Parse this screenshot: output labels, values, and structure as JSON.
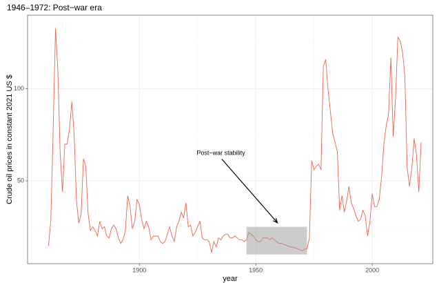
{
  "chart_data": {
    "type": "line",
    "title": "1946–1972: Post−war era",
    "x_label": "year",
    "y_label": "Crude oil prices in constant 2021 US $",
    "xlim": [
      1852,
      2026
    ],
    "ylim": [
      5,
      140
    ],
    "xticks": [
      1900,
      1950,
      2000
    ],
    "yticks": [
      50,
      100
    ],
    "xticks_minor": [
      1875,
      1925,
      1975,
      2025
    ],
    "yticks_minor": [
      25,
      75,
      125
    ],
    "grid": true,
    "color": "#f0614f",
    "x": [
      1861,
      1862,
      1863,
      1864,
      1865,
      1866,
      1867,
      1868,
      1869,
      1870,
      1871,
      1872,
      1873,
      1874,
      1875,
      1876,
      1877,
      1878,
      1879,
      1880,
      1881,
      1882,
      1883,
      1884,
      1885,
      1886,
      1887,
      1888,
      1889,
      1890,
      1891,
      1892,
      1893,
      1894,
      1895,
      1896,
      1897,
      1898,
      1899,
      1900,
      1901,
      1902,
      1903,
      1904,
      1905,
      1906,
      1907,
      1908,
      1909,
      1910,
      1911,
      1912,
      1913,
      1914,
      1915,
      1916,
      1917,
      1918,
      1919,
      1920,
      1921,
      1922,
      1923,
      1924,
      1925,
      1926,
      1927,
      1928,
      1929,
      1930,
      1931,
      1932,
      1933,
      1934,
      1935,
      1936,
      1937,
      1938,
      1939,
      1940,
      1941,
      1942,
      1943,
      1944,
      1945,
      1946,
      1947,
      1948,
      1949,
      1950,
      1951,
      1952,
      1953,
      1954,
      1955,
      1956,
      1957,
      1958,
      1959,
      1960,
      1961,
      1962,
      1963,
      1964,
      1965,
      1966,
      1967,
      1968,
      1969,
      1970,
      1971,
      1972,
      1973,
      1974,
      1975,
      1976,
      1977,
      1978,
      1979,
      1980,
      1981,
      1982,
      1983,
      1984,
      1985,
      1986,
      1987,
      1988,
      1989,
      1990,
      1991,
      1992,
      1993,
      1994,
      1995,
      1996,
      1997,
      1998,
      1999,
      2000,
      2001,
      2002,
      2003,
      2004,
      2005,
      2006,
      2007,
      2008,
      2009,
      2010,
      2011,
      2012,
      2013,
      2014,
      2015,
      2016,
      2017,
      2018,
      2019,
      2020,
      2021
    ],
    "values": [
      14.5,
      29,
      78,
      133,
      110,
      65,
      44,
      70,
      70,
      78,
      93,
      75,
      39,
      27,
      32,
      62,
      58,
      32,
      23,
      25,
      23,
      20,
      28,
      24,
      25,
      20,
      19,
      24,
      26,
      24,
      19,
      16,
      18,
      23,
      42,
      36,
      24,
      28,
      40,
      37,
      29,
      24,
      28,
      25,
      18,
      20,
      20,
      20,
      17,
      16,
      17,
      21,
      25,
      20,
      17,
      25,
      28,
      33,
      30,
      38,
      25,
      26,
      20,
      22,
      25,
      28,
      19,
      18,
      18,
      17,
      11,
      17,
      14,
      19,
      18,
      20,
      21,
      21,
      19,
      19,
      20,
      19,
      18,
      18,
      17,
      18,
      22,
      21,
      20,
      18,
      17,
      17,
      19,
      19,
      19,
      18,
      19,
      18,
      17,
      16,
      16,
      15.5,
      15,
      14.5,
      14,
      14,
      13.5,
      13,
      12.5,
      12,
      13,
      13,
      19,
      61,
      56,
      58,
      59,
      56,
      112,
      116,
      100,
      88,
      76,
      71,
      66,
      34,
      42,
      33,
      39,
      47,
      38,
      35,
      31,
      28,
      29,
      34,
      31,
      20,
      28,
      43,
      36,
      36,
      40,
      52,
      70,
      80,
      86,
      117,
      74,
      95,
      128,
      126,
      120,
      107,
      57,
      47,
      57,
      73,
      64,
      44,
      71
    ],
    "highlight": {
      "xmin": 1946,
      "xmax": 1972,
      "ymin": 10,
      "ymax": 25
    },
    "annotation": {
      "text": "Post−war stability",
      "x": 1935,
      "y": 65
    },
    "arrow": {
      "x": 1935.4,
      "y": 61.8,
      "xend": 1959.3,
      "yend": 27.2
    }
  }
}
